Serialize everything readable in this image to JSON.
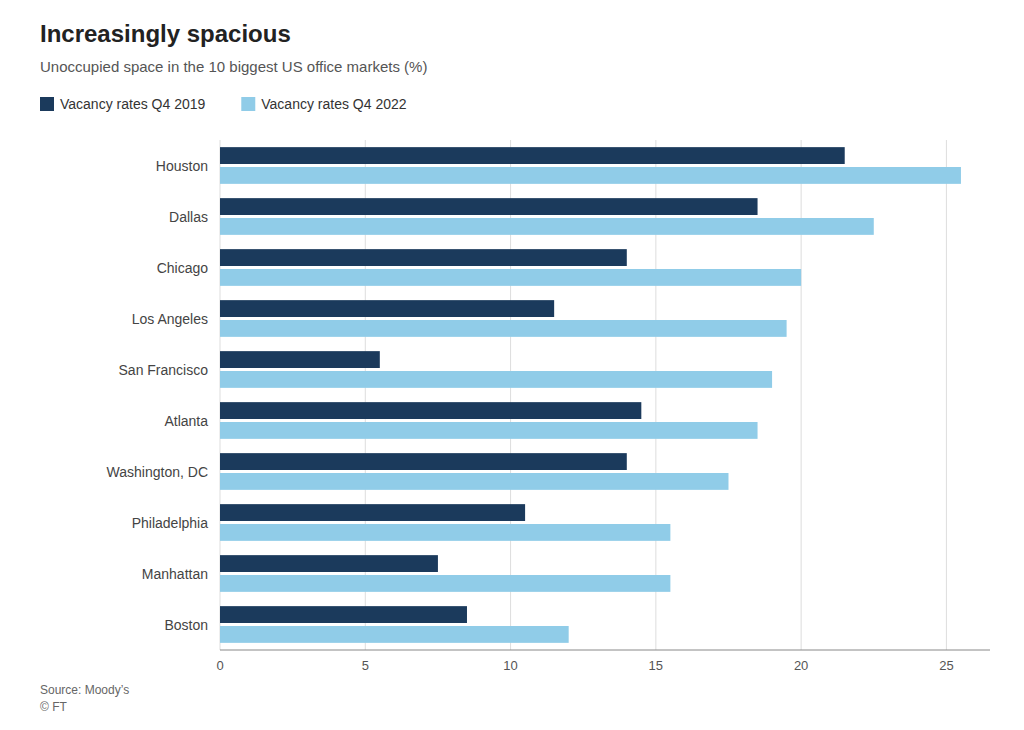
{
  "chart_data": {
    "type": "bar",
    "orientation": "horizontal",
    "title": "Increasingly spacious",
    "subtitle": "Unoccupied space in the 10 biggest US office markets (%)",
    "source": "Source: Moody’s\n© FT",
    "categories": [
      "Houston",
      "Dallas",
      "Chicago",
      "Los Angeles",
      "San Francisco",
      "Atlanta",
      "Washington, DC",
      "Philadelphia",
      "Manhattan",
      "Boston"
    ],
    "series": [
      {
        "name": "Vacancy rates Q4 2019",
        "color": "#1b3a5c",
        "values": [
          21.5,
          18.5,
          14.0,
          11.5,
          5.5,
          14.5,
          14.0,
          10.5,
          7.5,
          8.5
        ]
      },
      {
        "name": "Vacancy rates Q4 2022",
        "color": "#90cce8",
        "values": [
          25.5,
          22.5,
          20.0,
          19.5,
          19.0,
          18.5,
          17.5,
          15.5,
          15.5,
          12.0
        ]
      }
    ],
    "xlim": [
      0,
      26.5
    ],
    "xticks": [
      0,
      5,
      10,
      15,
      20,
      25
    ],
    "grid": true,
    "legend": "top"
  }
}
